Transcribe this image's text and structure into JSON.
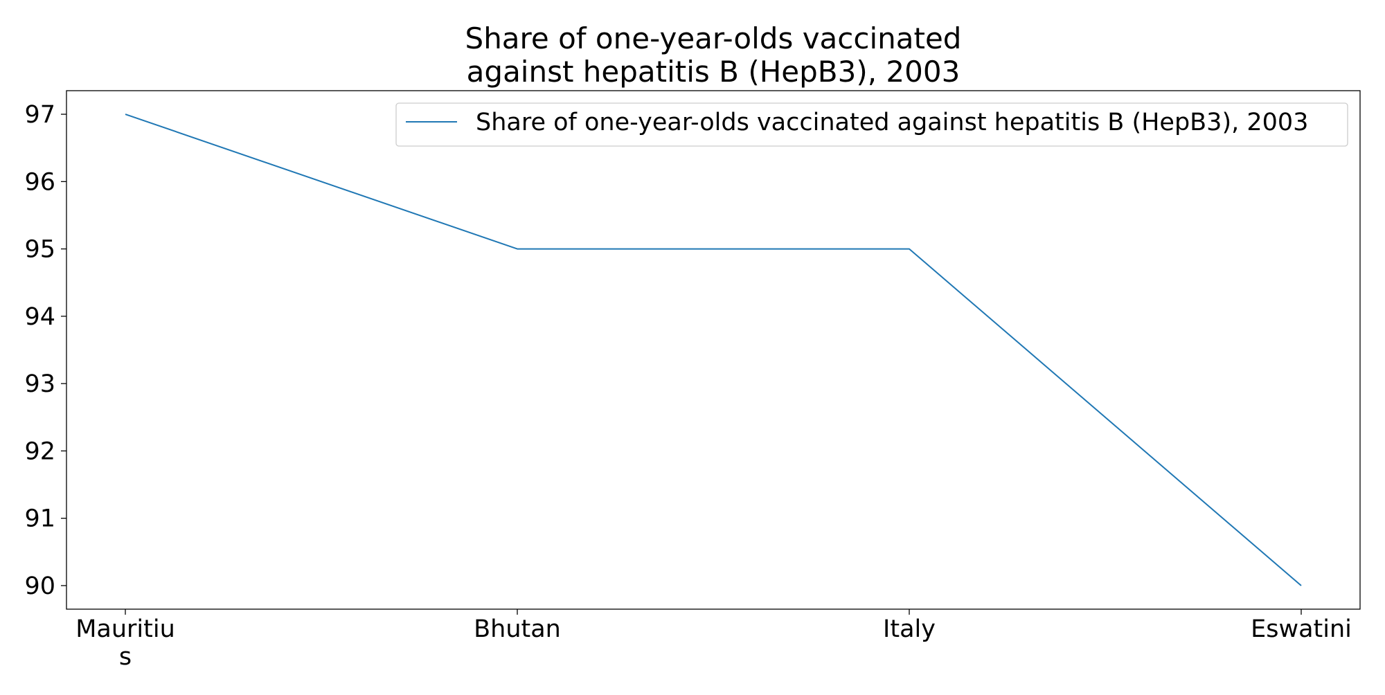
{
  "chart_data": {
    "type": "line",
    "title_lines": [
      "Share of one-year-olds vaccinated",
      "against hepatitis B (HepB3), 2003"
    ],
    "categories": [
      "Mauritius",
      "Bhutan",
      "Italy",
      "Eswatini"
    ],
    "category_label_lines": [
      [
        "Mauritiu",
        "s"
      ],
      [
        "Bhutan"
      ],
      [
        "Italy"
      ],
      [
        "Eswatini"
      ]
    ],
    "series": [
      {
        "name": "Share of one-year-olds vaccinated against hepatitis B (HepB3), 2003",
        "values": [
          97,
          95,
          95,
          90
        ],
        "color": "#1f77b4"
      }
    ],
    "y_ticks": [
      90,
      91,
      92,
      93,
      94,
      95,
      96,
      97
    ],
    "ylim": [
      89.65,
      97.35
    ],
    "xlabel": "",
    "ylabel": "",
    "grid": false,
    "legend_position": "top-right"
  }
}
